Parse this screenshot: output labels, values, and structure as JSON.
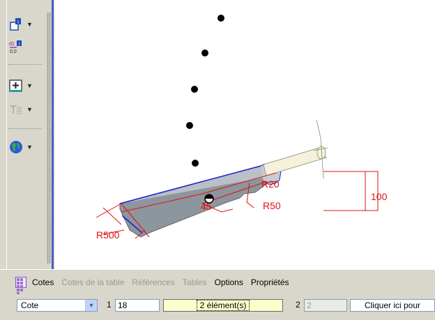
{
  "toolbar": {
    "items": [
      {
        "icon": "dimension-info-icon"
      },
      {
        "icon": "dimension-values-icon",
        "label": "0.0"
      },
      {
        "icon": "insert-table-icon"
      },
      {
        "icon": "text-style-icon"
      },
      {
        "icon": "globe-icon"
      }
    ]
  },
  "drawing": {
    "dims": {
      "r20": "R20",
      "r50": "R50",
      "r500": "R500",
      "d45": "45",
      "d100": "100"
    },
    "colors": {
      "dimension": "#e01010",
      "edge": "#1e1ed2",
      "part": "#b9c0c8"
    }
  },
  "bottom_tabs": {
    "items": [
      {
        "label": "Cotes",
        "enabled": true
      },
      {
        "label": "Cotes de la table",
        "enabled": false
      },
      {
        "label": "Références",
        "enabled": false
      },
      {
        "label": "Tables",
        "enabled": false
      },
      {
        "label": "Options",
        "enabled": true
      },
      {
        "label": "Propriétés",
        "enabled": true
      }
    ]
  },
  "bottom_bar": {
    "type_select": "Cote",
    "field1_index": "1",
    "field1_value": "18",
    "selection_label": "2 élément(s)",
    "field2_index": "2",
    "field2_value": "2",
    "action_label": "Cliquer ici pour"
  }
}
